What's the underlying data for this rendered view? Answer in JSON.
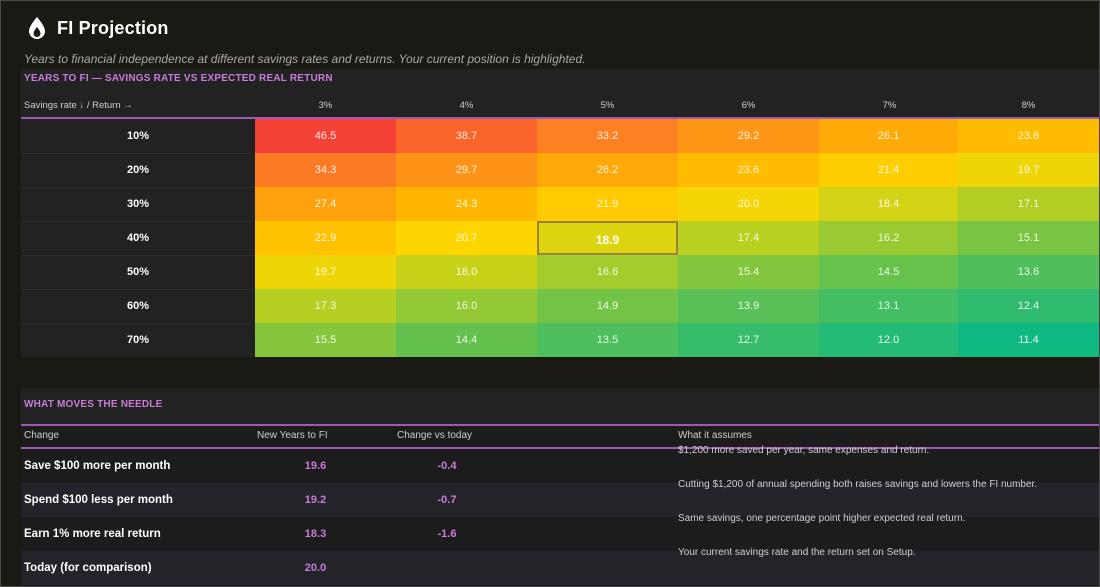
{
  "header": {
    "title": "FI Projection",
    "subtitle": "Years to financial independence at different savings rates and returns. Your current position is highlighted."
  },
  "heatmap": {
    "section_label": "YEARS TO FI — SAVINGS RATE VS EXPECTED REAL RETURN",
    "axis_label": "Savings rate ↓  /  Return →",
    "columns": [
      "3%",
      "4%",
      "5%",
      "6%",
      "7%",
      "8%"
    ],
    "rows": [
      {
        "label": "10%",
        "values": [
          "46.5",
          "38.7",
          "33.2",
          "29.2",
          "26.1",
          "23.6"
        ]
      },
      {
        "label": "20%",
        "values": [
          "34.3",
          "29.7",
          "26.2",
          "23.6",
          "21.4",
          "19.7"
        ]
      },
      {
        "label": "30%",
        "values": [
          "27.4",
          "24.3",
          "21.9",
          "20.0",
          "18.4",
          "17.1"
        ]
      },
      {
        "label": "40%",
        "values": [
          "22.9",
          "20.7",
          "18.9",
          "17.4",
          "16.2",
          "15.1"
        ]
      },
      {
        "label": "50%",
        "values": [
          "19.7",
          "18.0",
          "16.6",
          "15.4",
          "14.5",
          "13.6"
        ]
      },
      {
        "label": "60%",
        "values": [
          "17.3",
          "16.0",
          "14.9",
          "13.9",
          "13.1",
          "12.4"
        ]
      },
      {
        "label": "70%",
        "values": [
          "15.5",
          "14.4",
          "13.5",
          "12.7",
          "12.0",
          "11.4"
        ]
      }
    ],
    "current": {
      "row": 3,
      "col": 2
    },
    "scale_colors": {
      "max": "#f44336",
      "mid": "#ffd600",
      "min": "#10b981"
    }
  },
  "needle": {
    "section_label": "WHAT MOVES THE NEEDLE",
    "headers": {
      "change": "Change",
      "years": "New Years to FI",
      "delta": "Change vs today",
      "assumes": "What it assumes"
    },
    "rows": [
      {
        "change": "Save $100 more per month",
        "years": "19.6",
        "delta": "-0.4",
        "assumes": "$1,200 more saved per year, same expenses and return."
      },
      {
        "change": "Spend $100 less per month",
        "years": "19.2",
        "delta": "-0.7",
        "assumes": "Cutting $1,200 of annual spending both raises savings and lowers the FI number."
      },
      {
        "change": "Earn 1% more real return",
        "years": "18.3",
        "delta": "-1.6",
        "assumes": "Same savings, one percentage point higher expected real return."
      },
      {
        "change": "Today (for comparison)",
        "years": "20.0",
        "delta": "",
        "assumes": "Your current savings rate and the return set on Setup."
      }
    ]
  },
  "colors": {
    "accent": "#c77dd8",
    "rule": "#9b5bb2",
    "background": "#1a1914"
  },
  "icons": {
    "logo": "flame-drop-icon"
  }
}
